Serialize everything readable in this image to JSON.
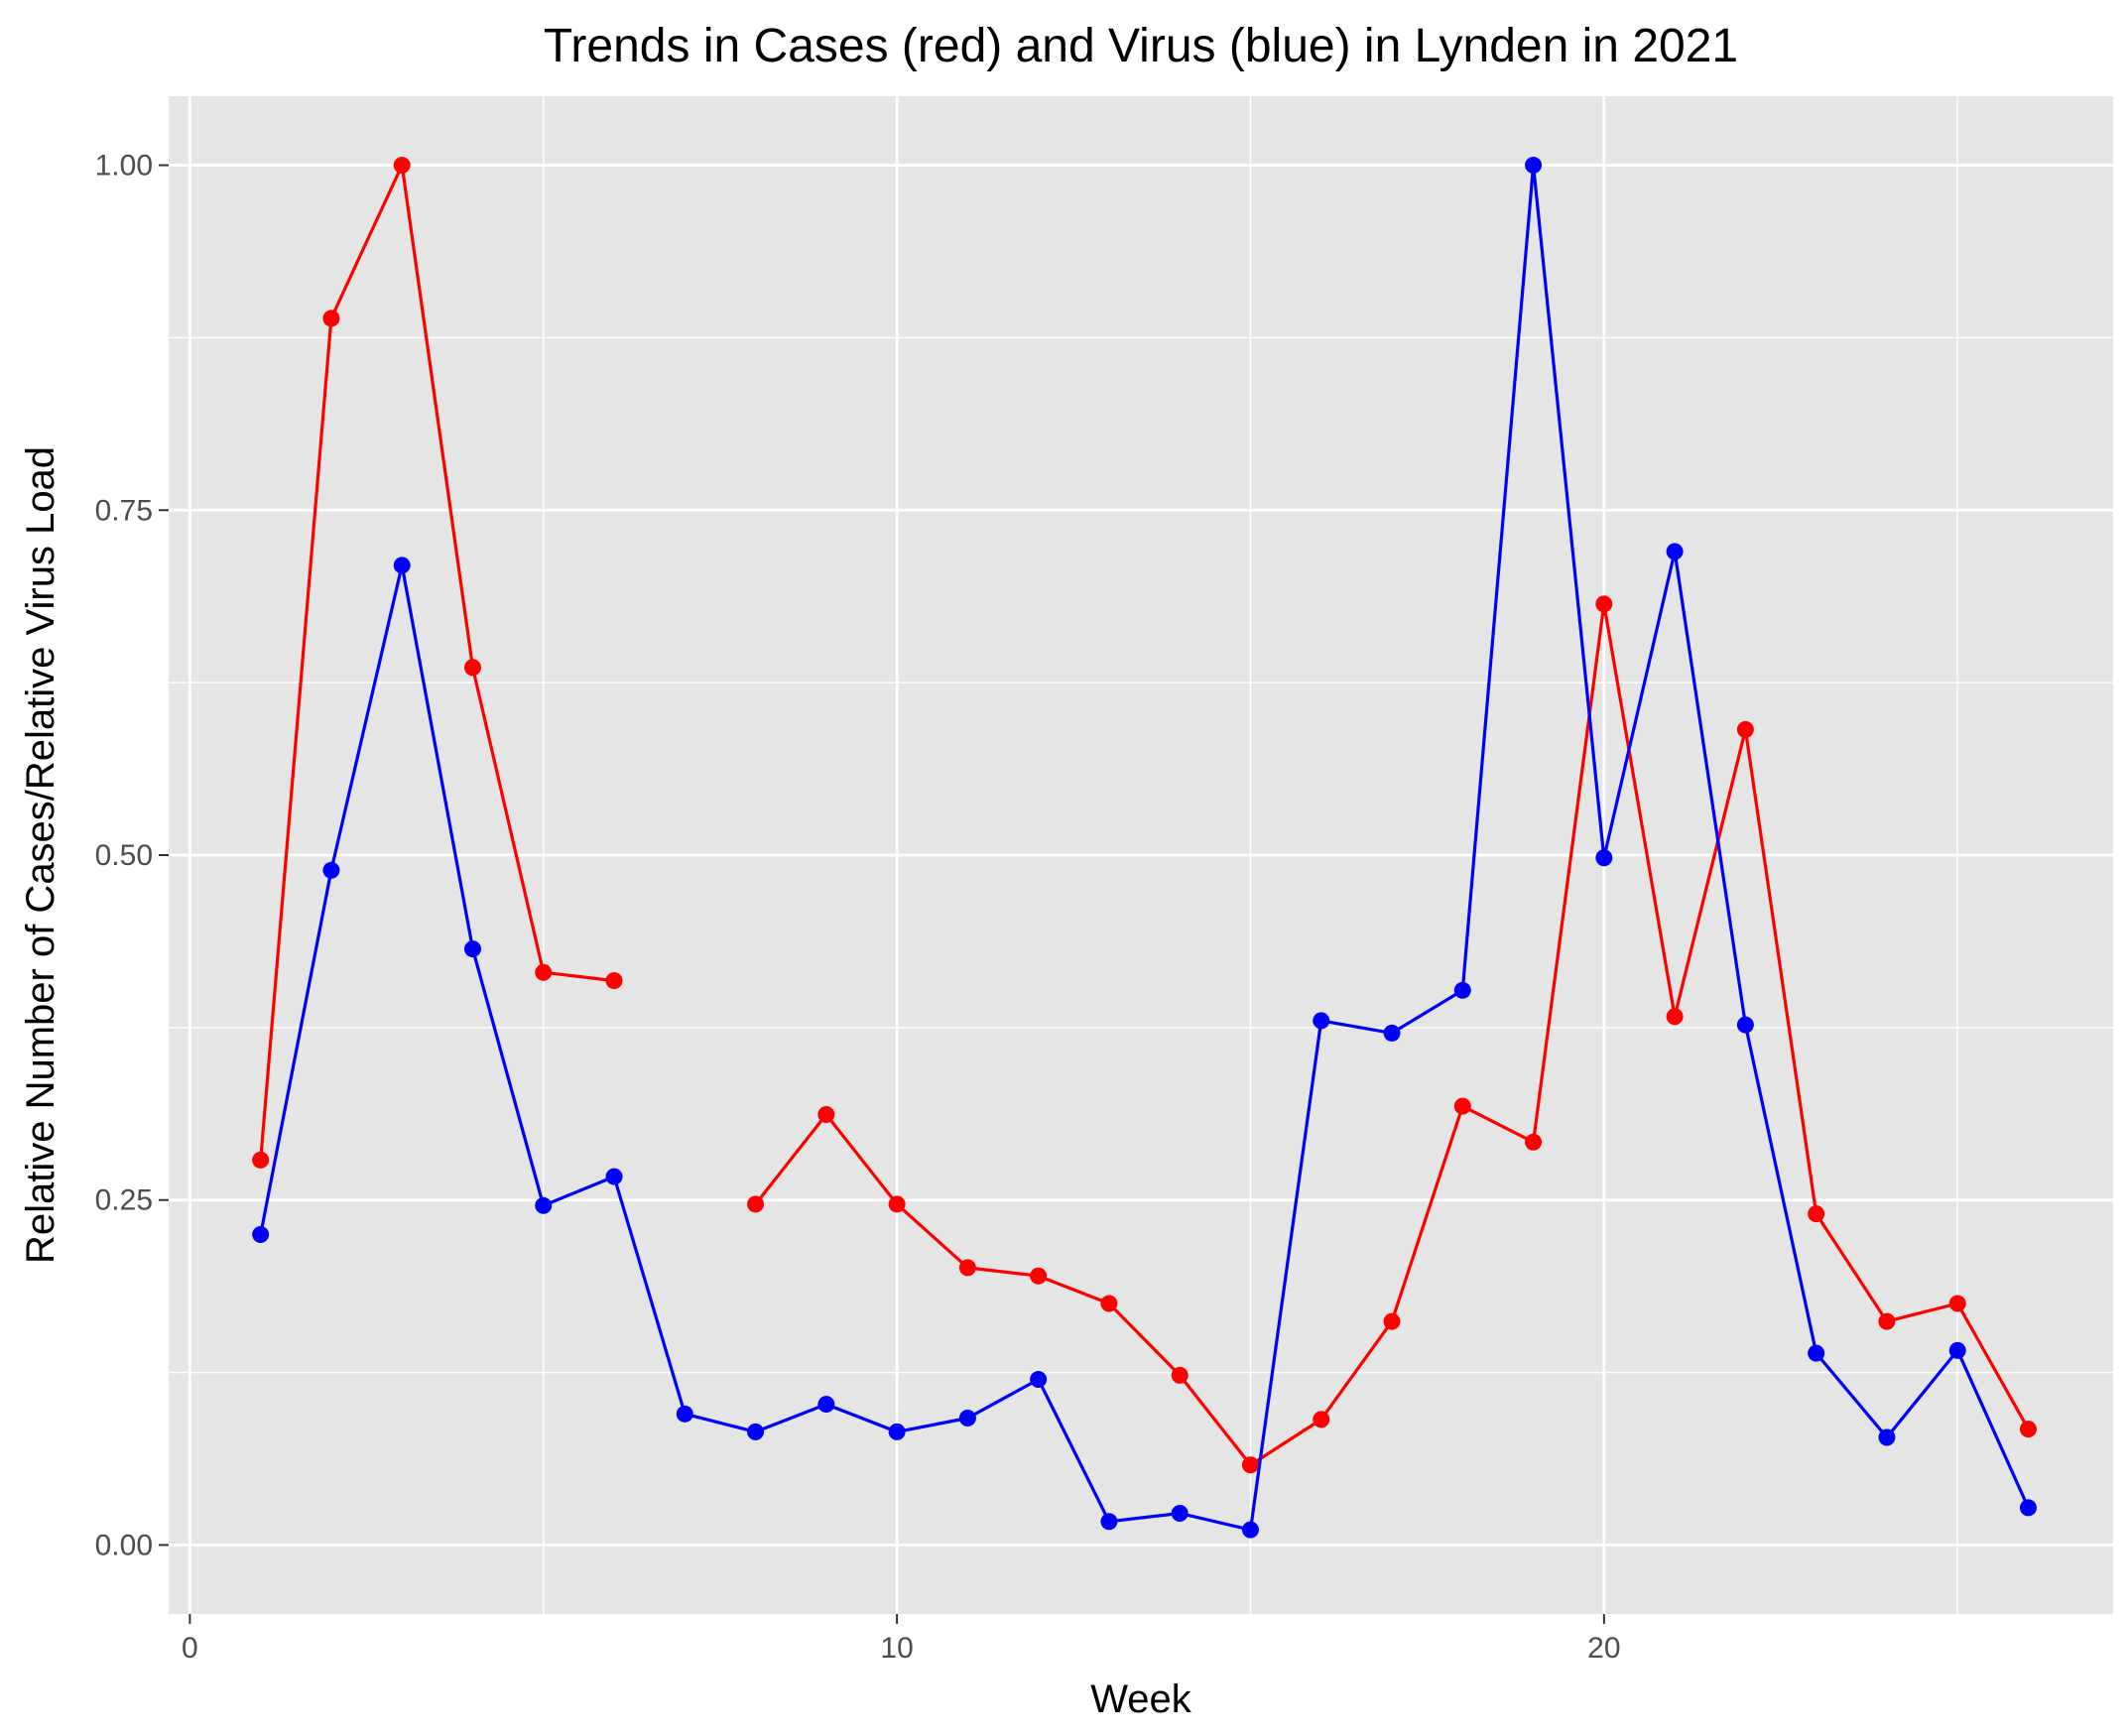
{
  "chart_data": {
    "type": "line",
    "title": "Trends in Cases (red) and Virus (blue) in Lynden in 2021",
    "xlabel": "Week",
    "ylabel": "Relative Number of Cases/Relative Virus Load",
    "xlim": [
      -0.3,
      27.2
    ],
    "ylim": [
      -0.05,
      1.05
    ],
    "x_ticks": [
      0,
      10,
      20
    ],
    "x_tick_labels": [
      "0",
      "10",
      "20"
    ],
    "y_ticks": [
      0,
      0.25,
      0.5,
      0.75,
      1.0
    ],
    "y_tick_labels": [
      "0.00",
      "0.25",
      "0.50",
      "0.75",
      "1.00"
    ],
    "grid": true,
    "legend": "none",
    "series": [
      {
        "color": "#ff0000",
        "x": [
          1,
          2,
          3,
          4,
          5,
          6,
          7,
          8,
          9,
          10,
          11,
          12,
          13,
          14,
          15,
          16,
          17,
          18,
          19,
          20,
          21,
          22,
          23,
          24,
          25,
          26
        ],
        "values": [
          0.279,
          0.889,
          1.0,
          0.636,
          0.415,
          0.409,
          null,
          0.247,
          0.312,
          0.247,
          0.201,
          0.195,
          0.175,
          0.123,
          0.058,
          0.091,
          0.162,
          0.318,
          0.292,
          0.682,
          0.383,
          0.591,
          0.24,
          0.162,
          0.175,
          0.084
        ]
      },
      {
        "color": "#0000ff",
        "x": [
          1,
          2,
          3,
          4,
          5,
          6,
          7,
          8,
          9,
          10,
          11,
          12,
          13,
          14,
          15,
          16,
          17,
          18,
          19,
          20,
          21,
          22,
          23,
          24,
          25,
          26
        ],
        "values": [
          0.225,
          0.489,
          0.71,
          0.432,
          0.246,
          0.267,
          0.095,
          0.082,
          0.102,
          0.082,
          0.092,
          0.12,
          0.017,
          0.023,
          0.011,
          0.38,
          0.371,
          0.402,
          1.0,
          0.498,
          0.72,
          0.377,
          0.139,
          0.078,
          0.141,
          0.027
        ]
      }
    ]
  }
}
